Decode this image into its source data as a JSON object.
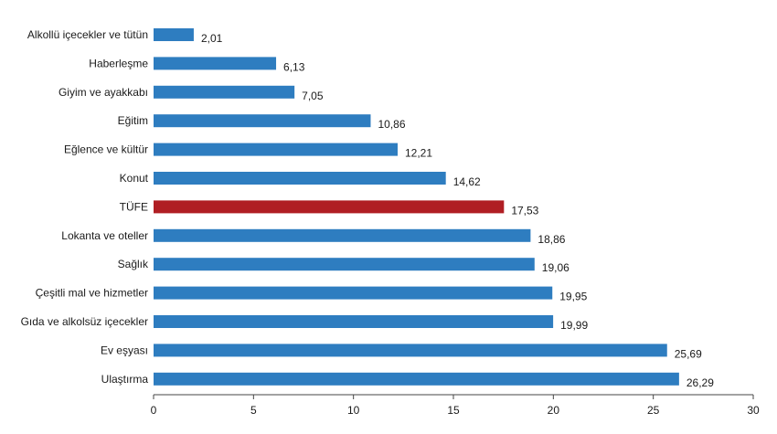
{
  "chart_data": {
    "type": "bar",
    "orientation": "horizontal",
    "title": "",
    "xlabel": "",
    "ylabel": "",
    "xlim": [
      0,
      30
    ],
    "x_ticks": [
      0,
      5,
      10,
      15,
      20,
      25,
      30
    ],
    "grid": false,
    "legend": "none",
    "categories": [
      "Alkollü içecekler ve tütün",
      "Haberleşme",
      "Giyim ve ayakkabı",
      "Eğitim",
      "Eğlence ve kültür",
      "Konut",
      "TÜFE",
      "Lokanta ve oteller",
      "Sağlık",
      "Çeşitli mal ve hizmetler",
      "Gıda ve alkolsüz içecekler",
      "Ev eşyası",
      "Ulaştırma"
    ],
    "values": [
      2.01,
      6.13,
      7.05,
      10.86,
      12.21,
      14.62,
      17.53,
      18.86,
      19.06,
      19.95,
      19.99,
      25.69,
      26.29
    ],
    "value_labels": [
      "2,01",
      "6,13",
      "7,05",
      "10,86",
      "12,21",
      "14,62",
      "17,53",
      "18,86",
      "19,06",
      "19,95",
      "19,99",
      "25,69",
      "26,29"
    ],
    "highlight_category": "TÜFE",
    "colors": {
      "bar": "#2e7dc0",
      "highlight": "#b01e23",
      "axis": "#444444"
    }
  }
}
